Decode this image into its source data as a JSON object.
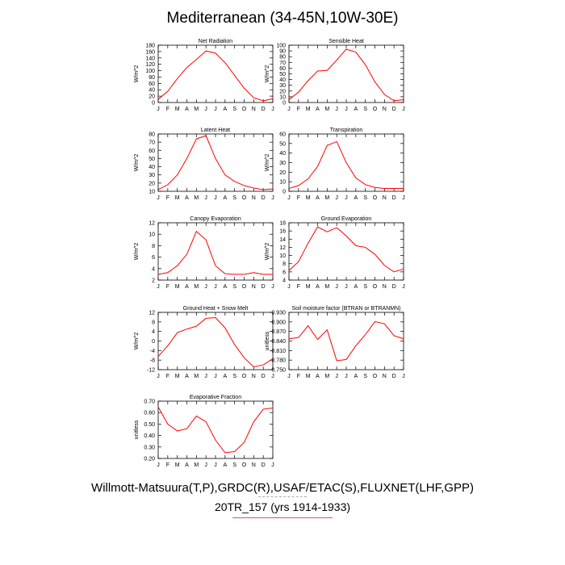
{
  "title": "Mediterranean (34-45N,10W-30E)",
  "footer": {
    "sources": "Willmott-Matsuura(T,P),GRDC(R),USAF/ETAC(S),FLUXNET(LHF,GPP)",
    "run": "20TR_157 (yrs 1914-1933)"
  },
  "colors": {
    "line": "#ff0000",
    "axis": "#000000"
  },
  "chart_data": [
    {
      "type": "line",
      "title": "Net Radiation",
      "ylabel": "W/m^2",
      "categories": [
        "J",
        "F",
        "M",
        "A",
        "M",
        "J",
        "J",
        "A",
        "S",
        "O",
        "N",
        "D",
        "J"
      ],
      "ylim": [
        0,
        180
      ],
      "yticks": [
        0,
        20,
        40,
        60,
        80,
        100,
        120,
        140,
        160,
        180
      ],
      "ytick_labels": [
        "0",
        "20",
        "40",
        "60",
        "80",
        "100",
        "120",
        "140",
        "160",
        "180"
      ],
      "values": [
        10,
        35,
        75,
        110,
        135,
        162,
        155,
        125,
        85,
        45,
        15,
        5,
        12
      ]
    },
    {
      "type": "line",
      "title": "Sensible Heat",
      "ylabel": "W/m^2",
      "categories": [
        "J",
        "F",
        "M",
        "A",
        "M",
        "J",
        "J",
        "A",
        "S",
        "O",
        "N",
        "D",
        "J"
      ],
      "ylim": [
        0,
        100
      ],
      "yticks": [
        0,
        10,
        20,
        30,
        40,
        50,
        60,
        70,
        80,
        90,
        100
      ],
      "ytick_labels": [
        "0",
        "10",
        "20",
        "30",
        "40",
        "50",
        "60",
        "70",
        "80",
        "90",
        "100"
      ],
      "values": [
        5,
        18,
        38,
        55,
        56,
        74,
        93,
        88,
        66,
        36,
        14,
        3,
        5
      ]
    },
    {
      "type": "line",
      "title": "Latent Heat",
      "ylabel": "W/m^2",
      "categories": [
        "J",
        "F",
        "M",
        "A",
        "M",
        "J",
        "J",
        "A",
        "S",
        "O",
        "N",
        "D",
        "J"
      ],
      "ylim": [
        10,
        80
      ],
      "yticks": [
        10,
        20,
        30,
        40,
        50,
        60,
        70,
        80
      ],
      "ytick_labels": [
        "10",
        "20",
        "30",
        "40",
        "50",
        "60",
        "70",
        "80"
      ],
      "values": [
        12,
        18,
        30,
        50,
        74,
        78,
        50,
        30,
        22,
        17,
        14,
        12,
        13
      ]
    },
    {
      "type": "line",
      "title": "Transpiration",
      "ylabel": "W/m^2",
      "categories": [
        "J",
        "F",
        "M",
        "A",
        "M",
        "J",
        "J",
        "A",
        "S",
        "O",
        "N",
        "D",
        "J"
      ],
      "ylim": [
        0,
        60
      ],
      "yticks": [
        0,
        10,
        20,
        30,
        40,
        50,
        60
      ],
      "ytick_labels": [
        "0",
        "10",
        "20",
        "30",
        "40",
        "50",
        "60"
      ],
      "values": [
        3,
        6,
        13,
        26,
        48,
        52,
        30,
        14,
        7,
        4,
        3,
        3,
        3
      ]
    },
    {
      "type": "line",
      "title": "Canopy Evaporation",
      "ylabel": "W/m^2",
      "categories": [
        "J",
        "F",
        "M",
        "A",
        "M",
        "J",
        "J",
        "A",
        "S",
        "O",
        "N",
        "D",
        "J"
      ],
      "ylim": [
        2,
        12
      ],
      "yticks": [
        2,
        4,
        6,
        8,
        10,
        12
      ],
      "ytick_labels": [
        "2",
        "4",
        "6",
        "8",
        "10",
        "12"
      ],
      "values": [
        3.0,
        3.3,
        4.5,
        6.5,
        10.5,
        9.0,
        4.5,
        3.1,
        3.0,
        3.0,
        3.3,
        3.0,
        3.0
      ]
    },
    {
      "type": "line",
      "title": "Ground Evaporation",
      "ylabel": "W/m^2",
      "categories": [
        "J",
        "F",
        "M",
        "A",
        "M",
        "J",
        "J",
        "A",
        "S",
        "O",
        "N",
        "D",
        "J"
      ],
      "ylim": [
        4,
        18
      ],
      "yticks": [
        4,
        6,
        8,
        10,
        12,
        14,
        16,
        18
      ],
      "ytick_labels": [
        "4",
        "6",
        "8",
        "10",
        "12",
        "14",
        "16",
        "18"
      ],
      "values": [
        6.3,
        8.5,
        13.0,
        17.0,
        15.8,
        16.8,
        14.8,
        12.4,
        12.0,
        10.3,
        7.6,
        6.0,
        6.7
      ]
    },
    {
      "type": "line",
      "title": "Ground Heat + Snow Melt",
      "ylabel": "W/m^2",
      "categories": [
        "J",
        "F",
        "M",
        "A",
        "M",
        "J",
        "J",
        "A",
        "S",
        "O",
        "N",
        "D",
        "J"
      ],
      "ylim": [
        -12,
        12
      ],
      "yticks": [
        -12,
        -8,
        -4,
        0,
        4,
        8,
        12
      ],
      "ytick_labels": [
        "-12",
        "-8",
        "-4",
        "0",
        "4",
        "8",
        "12"
      ],
      "values": [
        -6.5,
        -2,
        3.5,
        5,
        6.2,
        9.5,
        9.8,
        5.5,
        -1.5,
        -7,
        -10.8,
        -10,
        -7.5
      ]
    },
    {
      "type": "line",
      "title": "Soil moisture factor (BTRAN or BTRANMN)",
      "ylabel": "unitless",
      "categories": [
        "J",
        "F",
        "M",
        "A",
        "M",
        "J",
        "J",
        "A",
        "S",
        "O",
        "N",
        "D",
        "J"
      ],
      "ylim": [
        0.75,
        0.93
      ],
      "yticks": [
        0.75,
        0.78,
        0.81,
        0.84,
        0.87,
        0.9,
        0.93
      ],
      "ytick_labels": [
        "0.750",
        "0.780",
        "0.810",
        "0.840",
        "0.870",
        "0.900",
        "0.930"
      ],
      "values": [
        0.847,
        0.851,
        0.888,
        0.845,
        0.875,
        0.778,
        0.782,
        0.825,
        0.86,
        0.901,
        0.894,
        0.857,
        0.847
      ]
    },
    {
      "type": "line",
      "title": "Evaporative Fraction",
      "ylabel": "unitless",
      "categories": [
        "J",
        "F",
        "M",
        "A",
        "M",
        "J",
        "J",
        "A",
        "S",
        "O",
        "N",
        "D",
        "J"
      ],
      "ylim": [
        0.2,
        0.7
      ],
      "yticks": [
        0.2,
        0.3,
        0.4,
        0.5,
        0.6,
        0.7
      ],
      "ytick_labels": [
        "0.20",
        "0.30",
        "0.40",
        "0.50",
        "0.60",
        "0.70"
      ],
      "values": [
        0.65,
        0.5,
        0.44,
        0.46,
        0.57,
        0.52,
        0.36,
        0.25,
        0.26,
        0.34,
        0.52,
        0.63,
        0.64
      ]
    }
  ]
}
